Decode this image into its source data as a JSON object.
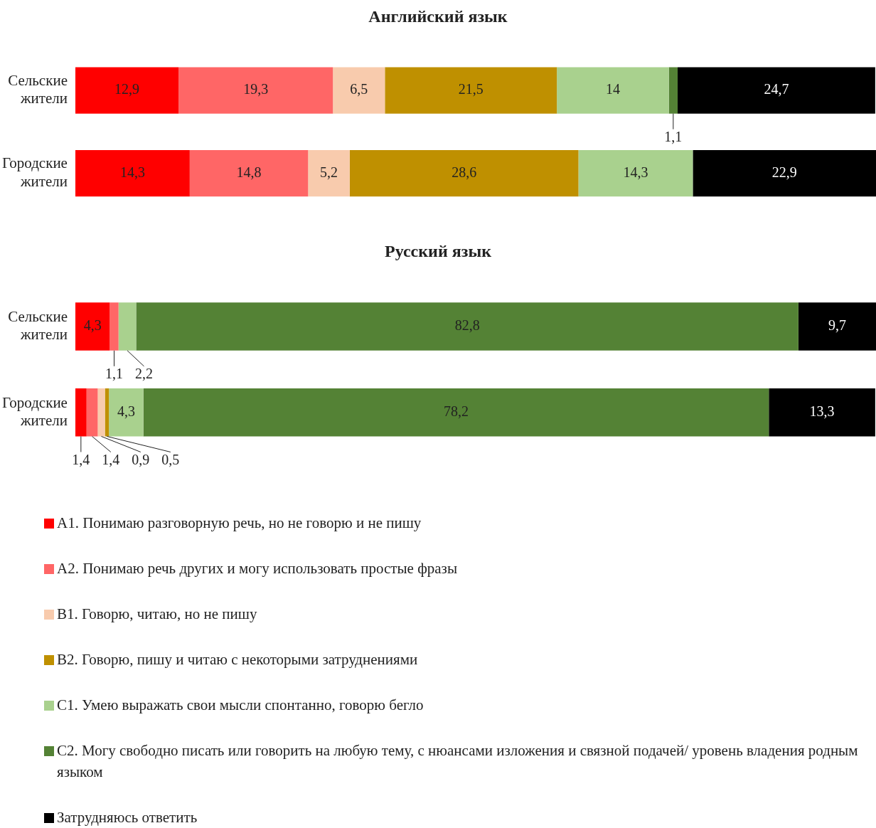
{
  "chart_data": [
    {
      "type": "bar",
      "title": "Английский язык",
      "orientation": "horizontal",
      "stacked": true,
      "categories": [
        "Сельские жители",
        "Городские жители"
      ],
      "tick_labels": "y",
      "legend": false,
      "series": [
        {
          "color": "#ff0000",
          "values": [
            12.9,
            14.3
          ],
          "value_labels": [
            "12,9",
            "14,3"
          ]
        },
        {
          "color": "#ff6666",
          "values": [
            19.3,
            14.8
          ],
          "value_labels": [
            "19,3",
            "14,8"
          ]
        },
        {
          "color": "#f8cbad",
          "values": [
            6.5,
            5.2
          ],
          "value_labels": [
            "6,5",
            "5,2"
          ]
        },
        {
          "color": "#bf9000",
          "values": [
            21.5,
            28.6
          ],
          "value_labels": [
            "21,5",
            "28,6"
          ]
        },
        {
          "color": "#a9d18e",
          "values": [
            14,
            14.3
          ],
          "value_labels": [
            "14",
            "14,3"
          ]
        },
        {
          "color": "#548235",
          "values": [
            1.1,
            null
          ],
          "value_labels": [
            "1,1",
            null
          ]
        },
        {
          "color": "#000000",
          "values": [
            24.7,
            22.9
          ],
          "value_labels": [
            "24,7",
            "22,9"
          ]
        }
      ]
    },
    {
      "type": "bar",
      "title": "Русский язык",
      "orientation": "horizontal",
      "stacked": true,
      "categories": [
        "Сельские жители",
        "Городские жители"
      ],
      "tick_labels": "y",
      "legend": "bottom",
      "series": [
        {
          "name": "A1. Понимаю разговорную речь, но не говорю и не пишу",
          "color": "#ff0000",
          "values": [
            4.3,
            1.4
          ],
          "value_labels": [
            "4,3",
            "1,4"
          ]
        },
        {
          "name": "A2. Понимаю речь других и могу использовать простые фразы",
          "color": "#ff6666",
          "values": [
            1.1,
            1.4
          ],
          "value_labels": [
            "1,1",
            "1,4"
          ]
        },
        {
          "name": "B1. Говорю, читаю, но не пишу",
          "color": "#f8cbad",
          "values": [
            null,
            0.9
          ],
          "value_labels": [
            null,
            "0,9"
          ]
        },
        {
          "name": "B2. Говорю, пишу и читаю с некоторыми затруднениями",
          "color": "#bf9000",
          "values": [
            null,
            0.5
          ],
          "value_labels": [
            null,
            "0,5"
          ]
        },
        {
          "name": "C1. Умею выражать свои мысли спонтанно, говорю бегло",
          "color": "#a9d18e",
          "values": [
            2.2,
            4.3
          ],
          "value_labels": [
            "2,2",
            "4,3"
          ]
        },
        {
          "name": "C2. Могу свободно писать или говорить на любую тему, с нюансами изложения и связной подачей/ уровень владения родным языком",
          "color": "#548235",
          "values": [
            82.8,
            78.2
          ],
          "value_labels": [
            "82,8",
            "78,2"
          ]
        },
        {
          "name": "Затрудняюсь ответить",
          "color": "#000000",
          "values": [
            9.7,
            13.3
          ],
          "value_labels": [
            "9,7",
            "13,3"
          ]
        }
      ]
    }
  ]
}
